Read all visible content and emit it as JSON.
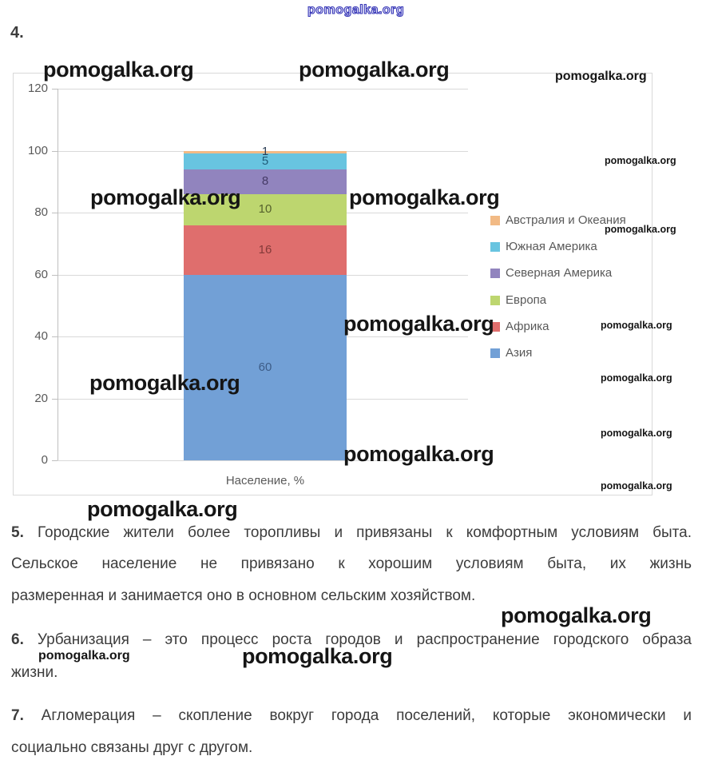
{
  "watermark": {
    "text": "pomogalka.org"
  },
  "heading": {
    "number": "4."
  },
  "chart": {
    "y_ticks": [
      120,
      100,
      80,
      60,
      40,
      20,
      0
    ],
    "x_axis_label": "Население, %"
  },
  "chart_data": {
    "type": "bar",
    "stacked": true,
    "orientation": "vertical",
    "title": "",
    "xlabel": "Население, %",
    "ylabel": "",
    "ylim": [
      0,
      120
    ],
    "grid": true,
    "legend_position": "right",
    "categories": [
      "Население, %"
    ],
    "series": [
      {
        "name": "Азия",
        "values": [
          60
        ],
        "color": "#72A0D6",
        "label_color": "#3D5C87"
      },
      {
        "name": "Африка",
        "values": [
          16
        ],
        "color": "#DF6E6D",
        "label_color": "#843A39"
      },
      {
        "name": "Европа",
        "values": [
          10
        ],
        "color": "#BDD66F",
        "label_color": "#55612C"
      },
      {
        "name": "Северная Америка",
        "values": [
          8
        ],
        "color": "#9184BE",
        "label_color": "#453A66"
      },
      {
        "name": "Южная Америка",
        "values": [
          5
        ],
        "color": "#68C4E0",
        "label_color": "#1F5C78"
      },
      {
        "name": "Австралия и Океания",
        "values": [
          1
        ],
        "color": "#F2BA85",
        "label_color": "#2E4057"
      }
    ]
  },
  "answers": [
    {
      "num": "5.",
      "lines": [
        "Городские жители более торопливы и привязаны к комфортным условиям быта.",
        "Сельское население не привязано к хорошим условиям быта, их жизнь",
        "размеренная и занимается оно в основном сельским хозяйством."
      ]
    },
    {
      "num": "6.",
      "lines": [
        "Урбанизация – это процесс роста городов и распространение городского образа",
        "жизни."
      ]
    },
    {
      "num": "7.",
      "lines": [
        "Агломерация – скопление вокруг города поселений, которые экономически и",
        "социально связаны друг с другом."
      ]
    }
  ]
}
